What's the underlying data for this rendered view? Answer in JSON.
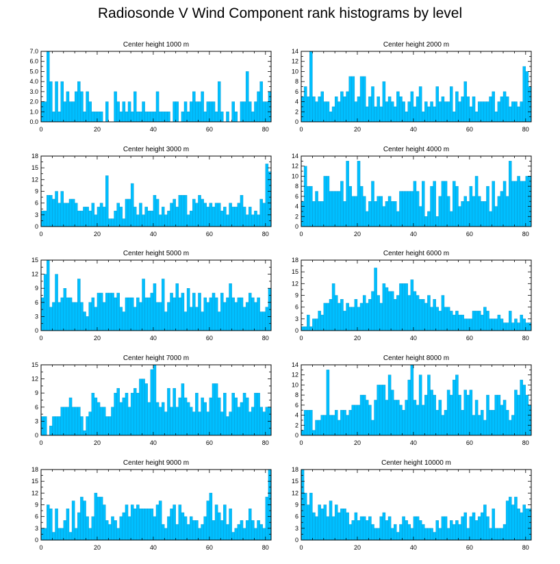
{
  "title": "Radiosonde V Wind Component rank histograms by level",
  "colors": {
    "bar": "#00bfff",
    "bar_edge": "#0a93c8",
    "axis": "#000000"
  },
  "chart_data": [
    {
      "type": "bar",
      "title": "Center height 1000 m",
      "xlim": [
        0,
        82
      ],
      "xticks": [
        0,
        20,
        40,
        60,
        80
      ],
      "ylim": [
        0,
        7
      ],
      "yticks": [
        0,
        1,
        2,
        3,
        4,
        5,
        6,
        7
      ],
      "ytick_labels": [
        "0.0",
        "1.0",
        "2.0",
        "3.0",
        "4.0",
        "5.0",
        "6.0",
        "7.0"
      ],
      "values": [
        2,
        2,
        7,
        4,
        1,
        4,
        1,
        4,
        2,
        3,
        2,
        2,
        3,
        4,
        3,
        1,
        3,
        2,
        1,
        1,
        1,
        1,
        0,
        2,
        0,
        0,
        3,
        2,
        1,
        2,
        1,
        2,
        1,
        3,
        1,
        1,
        2,
        1,
        1,
        1,
        1,
        3,
        1,
        1,
        1,
        1,
        0,
        2,
        2,
        0,
        1,
        2,
        1,
        2,
        3,
        2,
        2,
        3,
        1,
        2,
        2,
        2,
        1,
        4,
        1,
        0,
        1,
        0,
        2,
        1,
        0,
        2,
        2,
        5,
        2,
        1,
        2,
        3,
        4,
        2,
        2,
        3
      ]
    },
    {
      "type": "bar",
      "title": "Center height 2000 m",
      "xlim": [
        0,
        82
      ],
      "xticks": [
        0,
        20,
        40,
        60,
        80
      ],
      "ylim": [
        0,
        14
      ],
      "yticks": [
        0,
        2,
        4,
        6,
        8,
        10,
        12,
        14
      ],
      "ytick_labels": [
        "0",
        "2",
        "4",
        "6",
        "8",
        "10",
        "12",
        "14"
      ],
      "values": [
        5,
        7,
        5,
        14,
        5,
        4,
        5,
        6,
        4,
        4,
        2,
        3,
        5,
        4,
        6,
        5,
        6,
        9,
        9,
        4,
        5,
        9,
        9,
        3,
        5,
        7,
        3,
        5,
        3,
        8,
        4,
        5,
        4,
        3,
        6,
        5,
        4,
        2,
        4,
        6,
        3,
        5,
        7,
        2,
        4,
        3,
        4,
        3,
        7,
        4,
        5,
        4,
        4,
        7,
        2,
        6,
        4,
        5,
        8,
        5,
        3,
        5,
        2,
        4,
        4,
        4,
        4,
        5,
        6,
        2,
        4,
        5,
        6,
        5,
        3,
        4,
        4,
        3,
        4,
        11,
        10,
        7
      ]
    },
    {
      "type": "bar",
      "title": "Center height 3000 m",
      "xlim": [
        0,
        82
      ],
      "xticks": [
        0,
        20,
        40,
        60,
        80
      ],
      "ylim": [
        0,
        18
      ],
      "yticks": [
        0,
        3,
        6,
        9,
        12,
        15,
        18
      ],
      "ytick_labels": [
        "0",
        "3",
        "6",
        "9",
        "12",
        "15",
        "18"
      ],
      "values": [
        4,
        4,
        8,
        8,
        7,
        9,
        6,
        9,
        6,
        6,
        7,
        7,
        6,
        4,
        4,
        5,
        5,
        4,
        6,
        3,
        5,
        6,
        5,
        13,
        2,
        2,
        4,
        6,
        5,
        2,
        7,
        7,
        11,
        5,
        3,
        6,
        3,
        5,
        4,
        4,
        8,
        7,
        3,
        5,
        3,
        4,
        6,
        7,
        5,
        8,
        8,
        8,
        3,
        4,
        7,
        6,
        8,
        7,
        6,
        5,
        6,
        5,
        6,
        6,
        4,
        5,
        3,
        6,
        5,
        5,
        6,
        8,
        5,
        3,
        5,
        3,
        4,
        3,
        7,
        6,
        16,
        14
      ]
    },
    {
      "type": "bar",
      "title": "Center height 4000 m",
      "xlim": [
        0,
        82
      ],
      "xticks": [
        0,
        20,
        40,
        60,
        80
      ],
      "ylim": [
        0,
        14
      ],
      "yticks": [
        0,
        2,
        4,
        6,
        8,
        10,
        12,
        14
      ],
      "ytick_labels": [
        "0",
        "2",
        "4",
        "6",
        "8",
        "10",
        "12",
        "14"
      ],
      "values": [
        5,
        12,
        8,
        8,
        5,
        7,
        5,
        5,
        10,
        10,
        7,
        7,
        7,
        7,
        9,
        5,
        13,
        8,
        6,
        6,
        13,
        8,
        6,
        3,
        5,
        9,
        5,
        6,
        6,
        4,
        5,
        6,
        5,
        5,
        3,
        7,
        7,
        7,
        7,
        7,
        9,
        7,
        4,
        9,
        2,
        3,
        8,
        9,
        2,
        6,
        9,
        9,
        6,
        3,
        9,
        8,
        4,
        5,
        6,
        5,
        8,
        6,
        10,
        6,
        5,
        5,
        8,
        3,
        9,
        4,
        6,
        7,
        9,
        6,
        13,
        9,
        9,
        10,
        9,
        9,
        10,
        10
      ]
    },
    {
      "type": "bar",
      "title": "Center height 5000 m",
      "xlim": [
        0,
        82
      ],
      "xticks": [
        0,
        20,
        40,
        60,
        80
      ],
      "ylim": [
        0,
        15
      ],
      "yticks": [
        0,
        3,
        6,
        9,
        12,
        15
      ],
      "ytick_labels": [
        "0",
        "3",
        "6",
        "9",
        "12",
        "15"
      ],
      "values": [
        7,
        12,
        15,
        5,
        6,
        12,
        6,
        7,
        9,
        7,
        7,
        6,
        6,
        11,
        6,
        4,
        3,
        6,
        7,
        5,
        8,
        8,
        6,
        8,
        8,
        8,
        7,
        8,
        5,
        4,
        7,
        7,
        7,
        5,
        7,
        6,
        11,
        7,
        7,
        8,
        10,
        6,
        6,
        11,
        4,
        6,
        8,
        7,
        10,
        7,
        8,
        4,
        9,
        5,
        8,
        5,
        8,
        4,
        7,
        6,
        7,
        8,
        7,
        4,
        8,
        6,
        7,
        10,
        7,
        6,
        7,
        7,
        5,
        6,
        8,
        7,
        6,
        7,
        4,
        4,
        5,
        9
      ]
    },
    {
      "type": "bar",
      "title": "Center height 6000 m",
      "xlim": [
        0,
        82
      ],
      "xticks": [
        0,
        20,
        40,
        60,
        80
      ],
      "ylim": [
        0,
        18
      ],
      "yticks": [
        0,
        3,
        6,
        9,
        12,
        15,
        18
      ],
      "ytick_labels": [
        "0",
        "3",
        "6",
        "9",
        "12",
        "15",
        "18"
      ],
      "values": [
        1,
        1,
        4,
        1,
        3,
        3,
        5,
        4,
        7,
        7,
        8,
        12,
        9,
        7,
        8,
        5,
        7,
        6,
        6,
        8,
        6,
        7,
        9,
        7,
        8,
        10,
        16,
        9,
        7,
        12,
        11,
        10,
        10,
        8,
        9,
        12,
        12,
        12,
        9,
        13,
        10,
        9,
        8,
        8,
        7,
        9,
        6,
        8,
        6,
        5,
        9,
        6,
        6,
        5,
        4,
        5,
        4,
        4,
        3,
        3,
        3,
        5,
        5,
        5,
        4,
        6,
        5,
        3,
        3,
        3,
        4,
        3,
        2,
        2,
        5,
        2,
        3,
        2,
        4,
        3,
        2,
        2
      ]
    },
    {
      "type": "bar",
      "title": "Center height 7000 m",
      "xlim": [
        0,
        82
      ],
      "xticks": [
        0,
        20,
        40,
        60,
        80
      ],
      "ylim": [
        0,
        15
      ],
      "yticks": [
        0,
        3,
        6,
        9,
        12,
        15
      ],
      "ytick_labels": [
        "0",
        "3",
        "6",
        "9",
        "12",
        "15"
      ],
      "values": [
        4,
        4,
        0,
        2,
        4,
        4,
        4,
        6,
        6,
        6,
        8,
        6,
        6,
        6,
        4,
        1,
        4,
        5,
        9,
        8,
        7,
        6,
        6,
        4,
        4,
        6,
        9,
        10,
        7,
        8,
        9,
        6,
        9,
        10,
        9,
        12,
        12,
        11,
        7,
        14,
        15,
        7,
        6,
        7,
        5,
        10,
        6,
        10,
        6,
        8,
        11,
        8,
        7,
        6,
        5,
        9,
        5,
        8,
        7,
        5,
        8,
        11,
        11,
        8,
        5,
        9,
        4,
        5,
        9,
        8,
        6,
        7,
        9,
        8,
        5,
        6,
        9,
        9,
        6,
        5,
        6,
        6
      ]
    },
    {
      "type": "bar",
      "title": "Center height 8000 m",
      "xlim": [
        0,
        82
      ],
      "xticks": [
        0,
        20,
        40,
        60,
        80
      ],
      "ylim": [
        0,
        14
      ],
      "yticks": [
        0,
        2,
        4,
        6,
        8,
        10,
        12,
        14
      ],
      "ytick_labels": [
        "0",
        "2",
        "4",
        "6",
        "8",
        "10",
        "12",
        "14"
      ],
      "values": [
        1,
        5,
        5,
        5,
        1,
        3,
        3,
        4,
        4,
        13,
        4,
        4,
        5,
        3,
        5,
        5,
        4,
        5,
        6,
        6,
        6,
        8,
        8,
        7,
        6,
        3,
        7,
        10,
        10,
        10,
        7,
        12,
        9,
        7,
        7,
        6,
        5,
        7,
        11,
        14,
        7,
        6,
        12,
        6,
        8,
        12,
        9,
        8,
        5,
        7,
        4,
        5,
        9,
        8,
        11,
        12,
        8,
        5,
        9,
        8,
        9,
        4,
        7,
        4,
        5,
        3,
        8,
        5,
        5,
        8,
        8,
        6,
        7,
        5,
        3,
        4,
        9,
        8,
        11,
        10,
        8,
        6
      ]
    },
    {
      "type": "bar",
      "title": "Center height 9000 m",
      "xlim": [
        0,
        82
      ],
      "xticks": [
        0,
        20,
        40,
        60,
        80
      ],
      "ylim": [
        0,
        18
      ],
      "yticks": [
        0,
        3,
        6,
        9,
        12,
        15,
        18
      ],
      "ytick_labels": [
        "0",
        "3",
        "6",
        "9",
        "12",
        "15",
        "18"
      ],
      "values": [
        3,
        3,
        9,
        8,
        2,
        8,
        3,
        3,
        5,
        8,
        2,
        10,
        3,
        7,
        11,
        10,
        6,
        3,
        6,
        12,
        11,
        11,
        9,
        5,
        4,
        6,
        5,
        3,
        6,
        7,
        9,
        6,
        9,
        8,
        9,
        8,
        8,
        8,
        8,
        8,
        6,
        9,
        10,
        4,
        3,
        6,
        8,
        9,
        4,
        9,
        7,
        6,
        4,
        6,
        5,
        5,
        3,
        4,
        6,
        10,
        12,
        5,
        9,
        7,
        5,
        9,
        4,
        8,
        2,
        3,
        4,
        5,
        3,
        5,
        8,
        5,
        3,
        5,
        4,
        3,
        11,
        18
      ]
    },
    {
      "type": "bar",
      "title": "Center height 10000 m",
      "xlim": [
        0,
        82
      ],
      "xticks": [
        0,
        20,
        40,
        60,
        80
      ],
      "ylim": [
        0,
        18
      ],
      "yticks": [
        0,
        3,
        6,
        9,
        12,
        15,
        18
      ],
      "ytick_labels": [
        "0",
        "3",
        "6",
        "9",
        "12",
        "15",
        "18"
      ],
      "values": [
        18,
        12,
        9,
        12,
        7,
        6,
        9,
        8,
        9,
        6,
        10,
        6,
        9,
        7,
        8,
        8,
        7,
        4,
        5,
        7,
        5,
        6,
        6,
        5,
        6,
        4,
        3,
        3,
        6,
        7,
        5,
        6,
        3,
        4,
        2,
        4,
        6,
        5,
        4,
        3,
        6,
        6,
        5,
        4,
        3,
        3,
        3,
        2,
        5,
        3,
        6,
        6,
        3,
        5,
        4,
        5,
        4,
        6,
        7,
        3,
        6,
        7,
        5,
        6,
        7,
        9,
        6,
        3,
        8,
        3,
        3,
        3,
        4,
        10,
        11,
        9,
        11,
        8,
        7,
        9,
        8,
        8
      ]
    }
  ]
}
